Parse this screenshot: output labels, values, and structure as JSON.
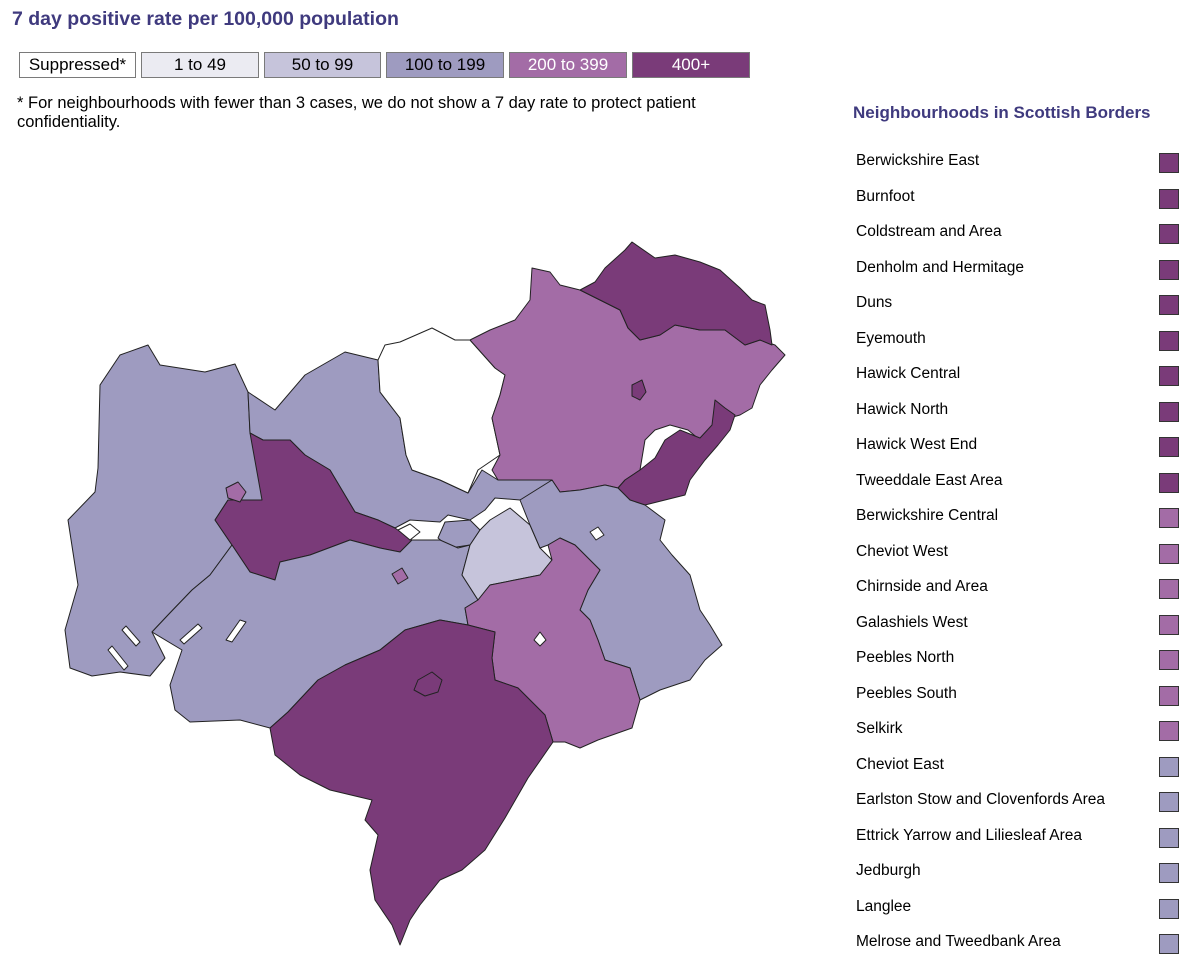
{
  "title": "7 day positive rate per 100,000 population",
  "legend": [
    {
      "label": "Suppressed*",
      "color": "#ffffff",
      "text_color": "#000000"
    },
    {
      "label": "1 to 49",
      "color": "#ebebf2",
      "text_color": "#000000"
    },
    {
      "label": "50 to 99",
      "color": "#c6c4db",
      "text_color": "#000000"
    },
    {
      "label": "100 to 199",
      "color": "#9e9bc0",
      "text_color": "#000000"
    },
    {
      "label": "200 to 399",
      "color": "#a36ca6",
      "text_color": "#ffffff"
    },
    {
      "label": "400+",
      "color": "#7a3b79",
      "text_color": "#ffffff"
    }
  ],
  "footnote": "* For neighbourhoods with fewer than 3 cases, we do not show a 7 day rate to protect patient confidentiality.",
  "panel_title": "Neighbourhoods in Scottish Borders",
  "neighbourhoods": [
    {
      "name": "Berwickshire East",
      "band": "400+",
      "color": "#7a3b79"
    },
    {
      "name": "Burnfoot",
      "band": "400+",
      "color": "#7a3b79"
    },
    {
      "name": "Coldstream and Area",
      "band": "400+",
      "color": "#7a3b79"
    },
    {
      "name": "Denholm and Hermitage",
      "band": "400+",
      "color": "#7a3b79"
    },
    {
      "name": "Duns",
      "band": "400+",
      "color": "#7a3b79"
    },
    {
      "name": "Eyemouth",
      "band": "400+",
      "color": "#7a3b79"
    },
    {
      "name": "Hawick Central",
      "band": "400+",
      "color": "#7a3b79"
    },
    {
      "name": "Hawick North",
      "band": "400+",
      "color": "#7a3b79"
    },
    {
      "name": "Hawick West End",
      "band": "400+",
      "color": "#7a3b79"
    },
    {
      "name": "Tweeddale East Area",
      "band": "400+",
      "color": "#7a3b79"
    },
    {
      "name": "Berwickshire Central",
      "band": "200 to 399",
      "color": "#a36ca6"
    },
    {
      "name": "Cheviot West",
      "band": "200 to 399",
      "color": "#a36ca6"
    },
    {
      "name": "Chirnside and Area",
      "band": "200 to 399",
      "color": "#a36ca6"
    },
    {
      "name": "Galashiels West",
      "band": "200 to 399",
      "color": "#a36ca6"
    },
    {
      "name": "Peebles North",
      "band": "200 to 399",
      "color": "#a36ca6"
    },
    {
      "name": "Peebles South",
      "band": "200 to 399",
      "color": "#a36ca6"
    },
    {
      "name": "Selkirk",
      "band": "200 to 399",
      "color": "#a36ca6"
    },
    {
      "name": "Cheviot East",
      "band": "100 to 199",
      "color": "#9e9bc0"
    },
    {
      "name": "Earlston Stow and Clovenfords Area",
      "band": "100 to 199",
      "color": "#9e9bc0"
    },
    {
      "name": "Ettrick Yarrow and Liliesleaf Area",
      "band": "100 to 199",
      "color": "#9e9bc0"
    },
    {
      "name": "Jedburgh",
      "band": "100 to 199",
      "color": "#9e9bc0"
    },
    {
      "name": "Langlee",
      "band": "100 to 199",
      "color": "#9e9bc0"
    },
    {
      "name": "Melrose and Tweedbank Area",
      "band": "100 to 199",
      "color": "#9e9bc0"
    }
  ],
  "map_colors": {
    "suppressed": "#ffffff",
    "band_1_49": "#ebebf2",
    "band_50_99": "#c6c4db",
    "band_100_199": "#9e9bc0",
    "band_200_399": "#a36ca6",
    "band_400_plus": "#7a3b79",
    "outline": "#222222"
  }
}
